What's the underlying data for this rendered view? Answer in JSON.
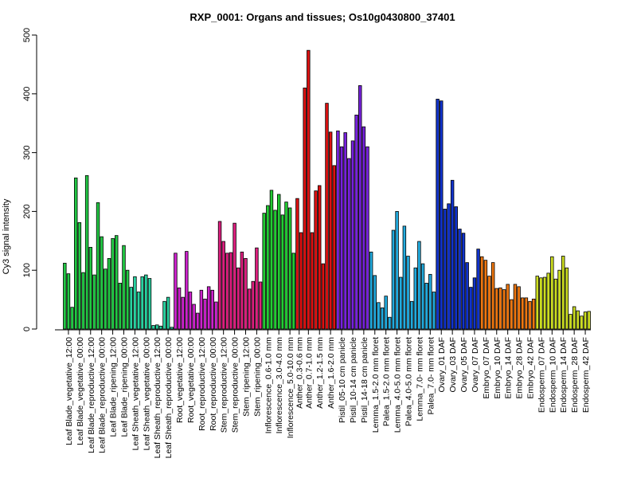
{
  "chart_data": {
    "type": "bar",
    "title": "RXP_0001: Organs and tissues; Os10g0430800_37401",
    "ylabel": "Cy3 signal intensity",
    "xlabel": "",
    "ylim": [
      0,
      500
    ],
    "yticks": [
      0,
      100,
      200,
      300,
      400,
      500
    ],
    "grid": false,
    "legend": "none",
    "categories": [
      "Leaf Blade_vegetative_12:00",
      "Leaf Blade_vegetative_00:00",
      "Leaf Blade_reproductive_12:00",
      "Leaf Blade_reproductive_00:00",
      "Leaf Blade_ripening_12:00",
      "Leaf Blade_ripening_00:00",
      "Leaf Sheath_vegetative_12:00",
      "Leaf Sheath_vegetative_00:00",
      "Leaf Sheath_reproductive_12:00",
      "Leaf Sheath_reproductive_00:00",
      "Root_vegetative_12:00",
      "Root_vegetative_00:00",
      "Root_reproductive_12:00",
      "Root_reproductive_00:00",
      "Stem_reproductive_12:00",
      "Stem_reproductive_00:00",
      "Stem_ripening_12:00",
      "Stem_ripening_00:00",
      "Inflorescence_0.6-1.0 mm",
      "Inflorescence_3.0-4.0 mm",
      "Inflorescence_5.0-10.0 mm",
      "Anther_0.3-0.6 mm",
      "Anther_0.7-1.0 mm",
      "Anther_1.2-1.5 mm",
      "Anther_1.6-2.0 mm",
      "Pistil_05-10 cm panicle",
      "Pistil_10-14 cm panicle",
      "Pistil_14-18 cm panicle",
      "Lemma_1.5-2.0 mm floret",
      "Palea_1.5-2.0 mm floret",
      "Lemma_4.0-5.0 mm floret",
      "Palea_4.0-5.0 mm floret",
      "Lemma_7.0- mm floret",
      "Palea_7.0- mm floret",
      "Ovary_01 DAF",
      "Ovary_03 DAF",
      "Ovary_05 DAF",
      "Ovary_07 DAF",
      "Embryo_07 DAF",
      "Embryo_10 DAF",
      "Embryo_14 DAF",
      "Embryo_28 DAF",
      "Embryo_42 DAF",
      "Endosperm_07 DAF",
      "Endosperm_10 DAF",
      "Endosperm_14 DAF",
      "Endosperm_28 DAF",
      "Endosperm_42 DAF"
    ],
    "groups": [
      {
        "category": "Leaf Blade_vegetative_12:00",
        "color": "#22c844",
        "values": [
          112,
          94,
          37
        ]
      },
      {
        "category": "Leaf Blade_vegetative_00:00",
        "color": "#22c844",
        "values": [
          257,
          181,
          96
        ]
      },
      {
        "category": "Leaf Blade_reproductive_12:00",
        "color": "#22c844",
        "values": [
          261,
          139,
          92
        ]
      },
      {
        "category": "Leaf Blade_reproductive_00:00",
        "color": "#22c844",
        "values": [
          215,
          157,
          102
        ]
      },
      {
        "category": "Leaf Blade_ripening_12:00",
        "color": "#22c844",
        "values": [
          120,
          154,
          159
        ]
      },
      {
        "category": "Leaf Blade_ripening_00:00",
        "color": "#22c844",
        "values": [
          78,
          142,
          100
        ]
      },
      {
        "category": "Leaf Sheath_vegetative_12:00",
        "color": "#28d2a0",
        "values": [
          71,
          89,
          63
        ]
      },
      {
        "category": "Leaf Sheath_vegetative_00:00",
        "color": "#28d2a0",
        "values": [
          89,
          92,
          86
        ]
      },
      {
        "category": "Leaf Sheath_reproductive_12:00",
        "color": "#28d2a0",
        "values": [
          6,
          7,
          5
        ]
      },
      {
        "category": "Leaf Sheath_reproductive_00:00",
        "color": "#28d2a0",
        "values": [
          47,
          54,
          3
        ]
      },
      {
        "category": "Root_vegetative_12:00",
        "color": "#cc22cc",
        "values": [
          129,
          70,
          54
        ]
      },
      {
        "category": "Root_vegetative_00:00",
        "color": "#cc22cc",
        "values": [
          132,
          63,
          42
        ]
      },
      {
        "category": "Root_reproductive_12:00",
        "color": "#cc22cc",
        "values": [
          27,
          66,
          51
        ]
      },
      {
        "category": "Root_reproductive_00:00",
        "color": "#cc22cc",
        "values": [
          72,
          66,
          46
        ]
      },
      {
        "category": "Stem_reproductive_12:00",
        "color": "#dd1f7f",
        "values": [
          183,
          149,
          129
        ]
      },
      {
        "category": "Stem_reproductive_00:00",
        "color": "#dd1f7f",
        "values": [
          130,
          180,
          104
        ]
      },
      {
        "category": "Stem_ripening_12:00",
        "color": "#dd1f7f",
        "values": [
          131,
          120,
          68
        ]
      },
      {
        "category": "Stem_ripening_00:00",
        "color": "#dd1f7f",
        "values": [
          81,
          138,
          80
        ]
      },
      {
        "category": "Inflorescence_0.6-1.0 mm",
        "color": "#22cc33",
        "values": [
          197,
          210,
          236
        ]
      },
      {
        "category": "Inflorescence_3.0-4.0 mm",
        "color": "#22cc33",
        "values": [
          202,
          229,
          194
        ]
      },
      {
        "category": "Inflorescence_5.0-10.0 mm",
        "color": "#22cc33",
        "values": [
          216,
          206,
          129
        ]
      },
      {
        "category": "Anther_0.3-0.6 mm",
        "color": "#dd1111",
        "values": [
          222,
          164
        ]
      },
      {
        "category": "Anther_0.7-1.0 mm",
        "color": "#dd1111",
        "values": [
          410,
          474,
          164
        ]
      },
      {
        "category": "Anther_1.2-1.5 mm",
        "color": "#dd1111",
        "values": [
          235,
          244,
          111
        ]
      },
      {
        "category": "Anther_1.6-2.0 mm",
        "color": "#dd1111",
        "values": [
          384,
          335,
          278
        ]
      },
      {
        "category": "Pistil_05-10 cm panicle",
        "color": "#7722dd",
        "values": [
          337,
          310,
          334
        ]
      },
      {
        "category": "Pistil_10-14 cm panicle",
        "color": "#7722dd",
        "values": [
          290,
          320,
          364
        ]
      },
      {
        "category": "Pistil_14-18 cm panicle",
        "color": "#7722dd",
        "values": [
          414,
          344,
          310
        ]
      },
      {
        "category": "Lemma_1.5-2.0 mm floret",
        "color": "#22aadd",
        "values": [
          131,
          91,
          45
        ]
      },
      {
        "category": "Palea_1.5-2.0 mm floret",
        "color": "#22aadd",
        "values": [
          36,
          56,
          20
        ]
      },
      {
        "category": "Lemma_4.0-5.0 mm floret",
        "color": "#22aadd",
        "values": [
          168,
          200,
          88
        ]
      },
      {
        "category": "Palea_4.0-5.0 mm floret",
        "color": "#22aadd",
        "values": [
          175,
          124,
          47
        ]
      },
      {
        "category": "Lemma_7.0- mm floret",
        "color": "#22aadd",
        "values": [
          104,
          149,
          111
        ]
      },
      {
        "category": "Palea_7.0- mm floret",
        "color": "#22aadd",
        "values": [
          78,
          93,
          63
        ]
      },
      {
        "category": "Ovary_01 DAF",
        "color": "#1133cc",
        "values": [
          391,
          388,
          204
        ]
      },
      {
        "category": "Ovary_03 DAF",
        "color": "#1133cc",
        "values": [
          213,
          253,
          208
        ]
      },
      {
        "category": "Ovary_05 DAF",
        "color": "#1133cc",
        "values": [
          170,
          163,
          113
        ]
      },
      {
        "category": "Ovary_07 DAF",
        "color": "#1133cc",
        "values": [
          71,
          87,
          136
        ]
      },
      {
        "category": "Embryo_07 DAF",
        "color": "#ee7711",
        "values": [
          123,
          117,
          90
        ]
      },
      {
        "category": "Embryo_10 DAF",
        "color": "#ee7711",
        "values": [
          113,
          69,
          70
        ]
      },
      {
        "category": "Embryo_14 DAF",
        "color": "#ee7711",
        "values": [
          67,
          76,
          50
        ]
      },
      {
        "category": "Embryo_28 DAF",
        "color": "#ee7711",
        "values": [
          76,
          72,
          53
        ]
      },
      {
        "category": "Embryo_42 DAF",
        "color": "#ee7711",
        "values": [
          53,
          47,
          51
        ]
      },
      {
        "category": "Endosperm_07 DAF",
        "color": "#ccdd22",
        "values": [
          90,
          87,
          88
        ]
      },
      {
        "category": "Endosperm_10 DAF",
        "color": "#ccdd22",
        "values": [
          95,
          123,
          85
        ]
      },
      {
        "category": "Endosperm_14 DAF",
        "color": "#ccdd22",
        "values": [
          100,
          124,
          104
        ]
      },
      {
        "category": "Endosperm_28 DAF",
        "color": "#ccdd22",
        "values": [
          25,
          38,
          31
        ]
      },
      {
        "category": "Endosperm_42 DAF",
        "color": "#ccdd22",
        "values": [
          22,
          29,
          30
        ]
      }
    ]
  }
}
